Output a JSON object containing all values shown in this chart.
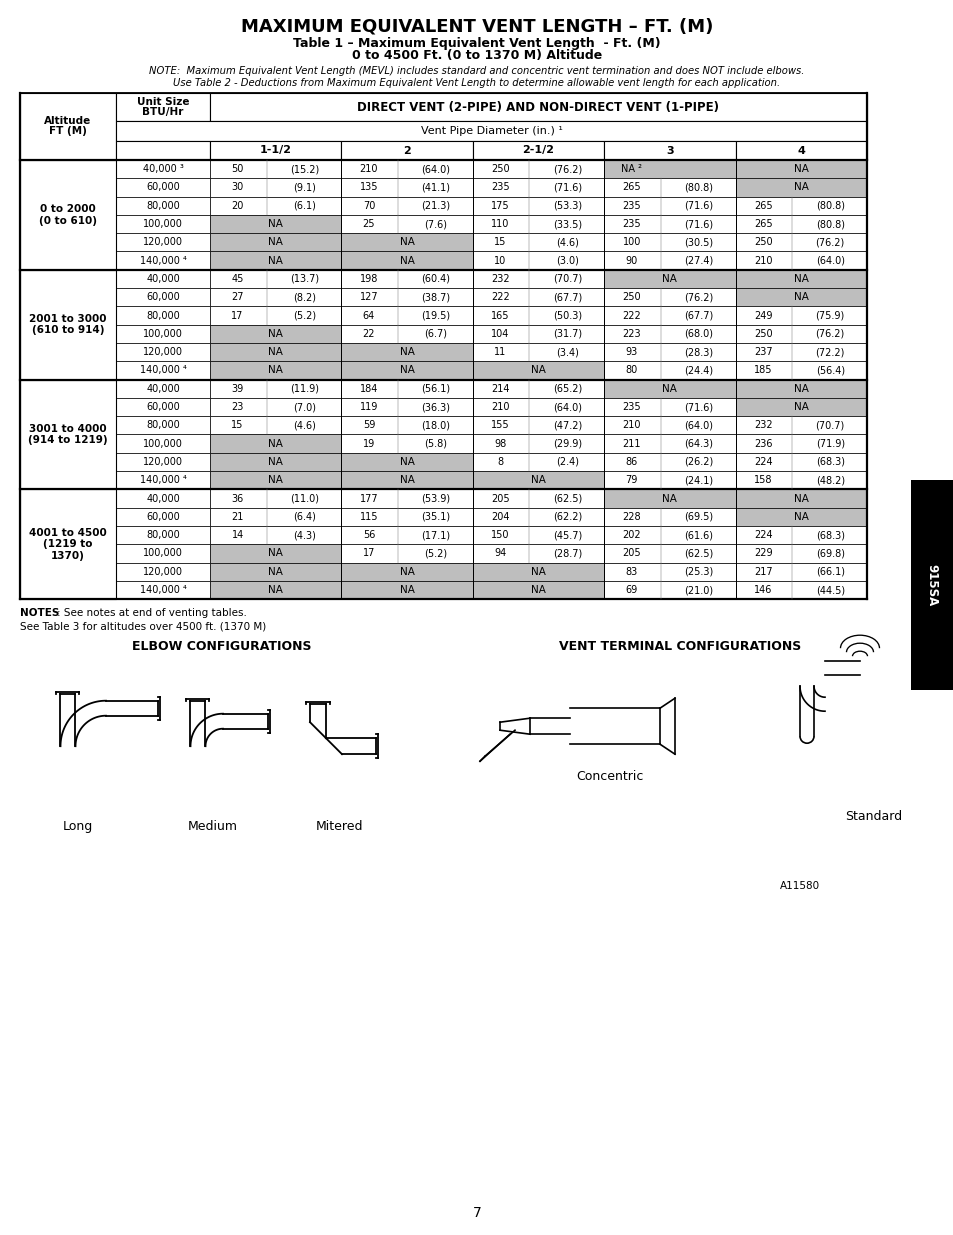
{
  "title": "MAXIMUM EQUIVALENT VENT LENGTH – FT. (M)",
  "subtitle1": "Table 1 – Maximum Equivalent Vent Length  - Ft. (M)",
  "subtitle2": "0 to 4500 Ft. (0 to 1370 M) Altitude",
  "note1": "NOTE:  Maximum Equivalent Vent Length (MEVL) includes standard and concentric vent termination and does NOT include elbows.",
  "note2": "Use Table 2 - Deductions from Maximum Equivalent Vent Length to determine allowable vent length for each application.",
  "pipe_sizes": [
    "1-1/2",
    "2",
    "2-1/2",
    "3",
    "4"
  ],
  "altitude_groups": [
    {
      "label": "0 to 2000\n(0 to 610)",
      "rows": [
        {
          "btu": "40,000 ³",
          "cols": [
            [
              "50",
              "(15.2)"
            ],
            [
              "210",
              "(64.0)"
            ],
            [
              "250",
              "(76.2)"
            ],
            [
              "NA ²",
              ""
            ],
            [
              "NA",
              ""
            ]
          ],
          "shade": [
            false,
            false,
            false,
            true,
            true
          ]
        },
        {
          "btu": "60,000",
          "cols": [
            [
              "30",
              "(9.1)"
            ],
            [
              "135",
              "(41.1)"
            ],
            [
              "235",
              "(71.6)"
            ],
            [
              "265",
              "(80.8)"
            ],
            [
              "NA",
              ""
            ]
          ],
          "shade": [
            false,
            false,
            false,
            false,
            true
          ]
        },
        {
          "btu": "80,000",
          "cols": [
            [
              "20",
              "(6.1)"
            ],
            [
              "70",
              "(21.3)"
            ],
            [
              "175",
              "(53.3)"
            ],
            [
              "235",
              "(71.6)"
            ],
            [
              "265",
              "(80.8)"
            ]
          ],
          "shade": [
            false,
            false,
            false,
            false,
            false
          ]
        },
        {
          "btu": "100,000",
          "cols": [
            [
              "NA",
              ""
            ],
            [
              "25",
              "(7.6)"
            ],
            [
              "110",
              "(33.5)"
            ],
            [
              "235",
              "(71.6)"
            ],
            [
              "265",
              "(80.8)"
            ]
          ],
          "shade": [
            true,
            false,
            false,
            false,
            false
          ]
        },
        {
          "btu": "120,000",
          "cols": [
            [
              "NA",
              ""
            ],
            [
              "NA",
              ""
            ],
            [
              "15",
              "(4.6)"
            ],
            [
              "100",
              "(30.5)"
            ],
            [
              "250",
              "(76.2)"
            ]
          ],
          "shade": [
            true,
            true,
            false,
            false,
            false
          ]
        },
        {
          "btu": "140,000 ⁴",
          "cols": [
            [
              "NA",
              ""
            ],
            [
              "NA",
              ""
            ],
            [
              "10",
              "(3.0)"
            ],
            [
              "90",
              "(27.4)"
            ],
            [
              "210",
              "(64.0)"
            ]
          ],
          "shade": [
            true,
            true,
            false,
            false,
            false
          ]
        }
      ]
    },
    {
      "label": "2001 to 3000\n(610 to 914)",
      "rows": [
        {
          "btu": "40,000",
          "cols": [
            [
              "45",
              "(13.7)"
            ],
            [
              "198",
              "(60.4)"
            ],
            [
              "232",
              "(70.7)"
            ],
            [
              "NA",
              ""
            ],
            [
              "NA",
              ""
            ]
          ],
          "shade": [
            false,
            false,
            false,
            true,
            true
          ]
        },
        {
          "btu": "60,000",
          "cols": [
            [
              "27",
              "(8.2)"
            ],
            [
              "127",
              "(38.7)"
            ],
            [
              "222",
              "(67.7)"
            ],
            [
              "250",
              "(76.2)"
            ],
            [
              "NA",
              ""
            ]
          ],
          "shade": [
            false,
            false,
            false,
            false,
            true
          ]
        },
        {
          "btu": "80,000",
          "cols": [
            [
              "17",
              "(5.2)"
            ],
            [
              "64",
              "(19.5)"
            ],
            [
              "165",
              "(50.3)"
            ],
            [
              "222",
              "(67.7)"
            ],
            [
              "249",
              "(75.9)"
            ]
          ],
          "shade": [
            false,
            false,
            false,
            false,
            false
          ]
        },
        {
          "btu": "100,000",
          "cols": [
            [
              "NA",
              ""
            ],
            [
              "22",
              "(6.7)"
            ],
            [
              "104",
              "(31.7)"
            ],
            [
              "223",
              "(68.0)"
            ],
            [
              "250",
              "(76.2)"
            ]
          ],
          "shade": [
            true,
            false,
            false,
            false,
            false
          ]
        },
        {
          "btu": "120,000",
          "cols": [
            [
              "NA",
              ""
            ],
            [
              "NA",
              ""
            ],
            [
              "11",
              "(3.4)"
            ],
            [
              "93",
              "(28.3)"
            ],
            [
              "237",
              "(72.2)"
            ]
          ],
          "shade": [
            true,
            true,
            false,
            false,
            false
          ]
        },
        {
          "btu": "140,000 ⁴",
          "cols": [
            [
              "NA",
              ""
            ],
            [
              "NA",
              ""
            ],
            [
              "NA",
              ""
            ],
            [
              "80",
              "(24.4)"
            ],
            [
              "185",
              "(56.4)"
            ]
          ],
          "shade": [
            true,
            true,
            true,
            false,
            false
          ]
        }
      ]
    },
    {
      "label": "3001 to 4000\n(914 to 1219)",
      "rows": [
        {
          "btu": "40,000",
          "cols": [
            [
              "39",
              "(11.9)"
            ],
            [
              "184",
              "(56.1)"
            ],
            [
              "214",
              "(65.2)"
            ],
            [
              "NA",
              ""
            ],
            [
              "NA",
              ""
            ]
          ],
          "shade": [
            false,
            false,
            false,
            true,
            true
          ]
        },
        {
          "btu": "60,000",
          "cols": [
            [
              "23",
              "(7.0)"
            ],
            [
              "119",
              "(36.3)"
            ],
            [
              "210",
              "(64.0)"
            ],
            [
              "235",
              "(71.6)"
            ],
            [
              "NA",
              ""
            ]
          ],
          "shade": [
            false,
            false,
            false,
            false,
            true
          ]
        },
        {
          "btu": "80,000",
          "cols": [
            [
              "15",
              "(4.6)"
            ],
            [
              "59",
              "(18.0)"
            ],
            [
              "155",
              "(47.2)"
            ],
            [
              "210",
              "(64.0)"
            ],
            [
              "232",
              "(70.7)"
            ]
          ],
          "shade": [
            false,
            false,
            false,
            false,
            false
          ]
        },
        {
          "btu": "100,000",
          "cols": [
            [
              "NA",
              ""
            ],
            [
              "19",
              "(5.8)"
            ],
            [
              "98",
              "(29.9)"
            ],
            [
              "211",
              "(64.3)"
            ],
            [
              "236",
              "(71.9)"
            ]
          ],
          "shade": [
            true,
            false,
            false,
            false,
            false
          ]
        },
        {
          "btu": "120,000",
          "cols": [
            [
              "NA",
              ""
            ],
            [
              "NA",
              ""
            ],
            [
              "8",
              "(2.4)"
            ],
            [
              "86",
              "(26.2)"
            ],
            [
              "224",
              "(68.3)"
            ]
          ],
          "shade": [
            true,
            true,
            false,
            false,
            false
          ]
        },
        {
          "btu": "140,000 ⁴",
          "cols": [
            [
              "NA",
              ""
            ],
            [
              "NA",
              ""
            ],
            [
              "NA",
              ""
            ],
            [
              "79",
              "(24.1)"
            ],
            [
              "158",
              "(48.2)"
            ]
          ],
          "shade": [
            true,
            true,
            true,
            false,
            false
          ]
        }
      ]
    },
    {
      "label": "4001 to 4500\n(1219 to\n1370)",
      "rows": [
        {
          "btu": "40,000",
          "cols": [
            [
              "36",
              "(11.0)"
            ],
            [
              "177",
              "(53.9)"
            ],
            [
              "205",
              "(62.5)"
            ],
            [
              "NA",
              ""
            ],
            [
              "NA",
              ""
            ]
          ],
          "shade": [
            false,
            false,
            false,
            true,
            true
          ]
        },
        {
          "btu": "60,000",
          "cols": [
            [
              "21",
              "(6.4)"
            ],
            [
              "115",
              "(35.1)"
            ],
            [
              "204",
              "(62.2)"
            ],
            [
              "228",
              "(69.5)"
            ],
            [
              "NA",
              ""
            ]
          ],
          "shade": [
            false,
            false,
            false,
            false,
            true
          ]
        },
        {
          "btu": "80,000",
          "cols": [
            [
              "14",
              "(4.3)"
            ],
            [
              "56",
              "(17.1)"
            ],
            [
              "150",
              "(45.7)"
            ],
            [
              "202",
              "(61.6)"
            ],
            [
              "224",
              "(68.3)"
            ]
          ],
          "shade": [
            false,
            false,
            false,
            false,
            false
          ]
        },
        {
          "btu": "100,000",
          "cols": [
            [
              "NA",
              ""
            ],
            [
              "17",
              "(5.2)"
            ],
            [
              "94",
              "(28.7)"
            ],
            [
              "205",
              "(62.5)"
            ],
            [
              "229",
              "(69.8)"
            ]
          ],
          "shade": [
            true,
            false,
            false,
            false,
            false
          ]
        },
        {
          "btu": "120,000",
          "cols": [
            [
              "NA",
              ""
            ],
            [
              "NA",
              ""
            ],
            [
              "NA",
              ""
            ],
            [
              "83",
              "(25.3)"
            ],
            [
              "217",
              "(66.1)"
            ]
          ],
          "shade": [
            true,
            true,
            true,
            false,
            false
          ]
        },
        {
          "btu": "140,000 ⁴",
          "cols": [
            [
              "NA",
              ""
            ],
            [
              "NA",
              ""
            ],
            [
              "NA",
              ""
            ],
            [
              "69",
              "(21.0)"
            ],
            [
              "146",
              "(44.5)"
            ]
          ],
          "shade": [
            true,
            true,
            true,
            false,
            false
          ]
        }
      ]
    }
  ],
  "notes_bottom": [
    "NOTES: See notes at end of venting tables.",
    "See Table 3 for altitudes over 4500 ft. (1370 M)"
  ],
  "elbow_label": "ELBOW CONFIGURATIONS",
  "vent_label": "VENT TERMINAL CONFIGURATIONS",
  "elbow_items": [
    "Long",
    "Medium",
    "Mitered"
  ],
  "concentric_label": "Concentric",
  "standard_label": "Standard",
  "figure_id": "A11580",
  "tab_label": "915SA",
  "shade_color": "#bebebe",
  "white": "#ffffff",
  "black": "#000000",
  "bg": "#ffffff",
  "page_number": "7"
}
